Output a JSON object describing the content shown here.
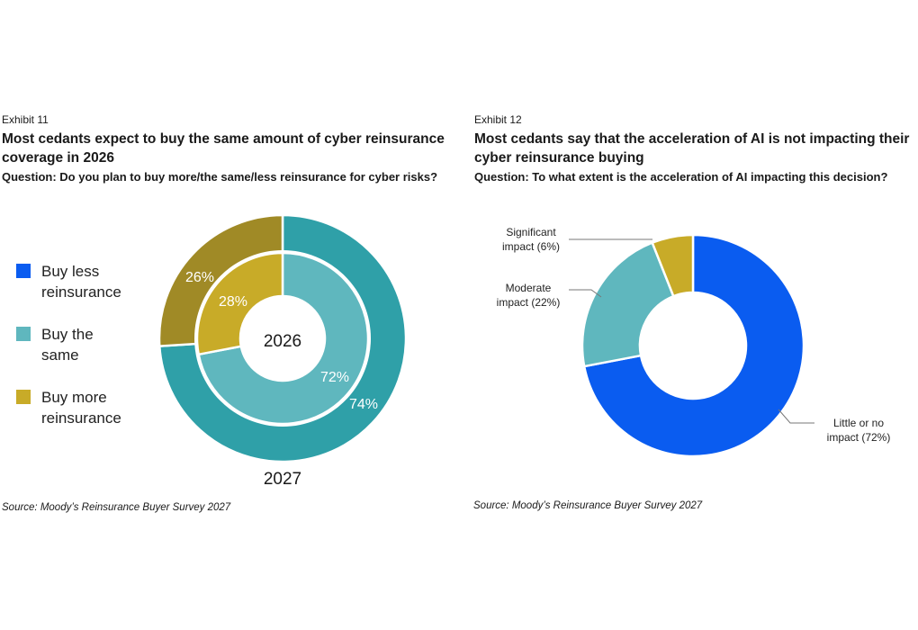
{
  "colors": {
    "buy_less": "#0a5cf0",
    "buy_same_outer": "#2fa0a8",
    "buy_same_inner": "#5fb7be",
    "buy_more_outer": "#a08a26",
    "buy_more_inner": "#c8ab28",
    "little_impact": "#0a5cf0",
    "moderate_impact": "#5fb7be",
    "significant_impact": "#c8ab28"
  },
  "exhibit11": {
    "label": "Exhibit 11",
    "title": "Most cedants expect to buy the same amount of cyber reinsurance coverage in 2026",
    "question": "Question: Do you plan to buy more/the same/less reinsurance for cyber risks?",
    "source": "Source: Moody’s Reinsurance Buyer Survey 2027",
    "legend": [
      {
        "line1": "Buy less",
        "line2": "reinsurance"
      },
      {
        "line1": "Buy the",
        "line2": "same"
      },
      {
        "line1": "Buy more",
        "line2": "reinsurance"
      }
    ]
  },
  "exhibit12": {
    "label": "Exhibit 12",
    "title": "Most cedants say that the acceleration of AI is not impacting their cyber reinsurance buying",
    "question": "Question: To what extent is the acceleration of AI impacting this decision?",
    "source": "Source: Moody’s Reinsurance Buyer Survey 2027",
    "callouts": [
      {
        "line1": "Significant",
        "line2": "impact (6%)"
      },
      {
        "line1": "Moderate",
        "line2": "impact (22%)"
      },
      {
        "line1": "Little or no",
        "line2": "impact (72%)"
      }
    ]
  },
  "chart_data": [
    {
      "type": "pie",
      "variant": "nested-donut",
      "title": "Most cedants expect to buy the same amount of cyber reinsurance coverage in 2026",
      "categories": [
        "Buy less reinsurance",
        "Buy the same",
        "Buy more reinsurance"
      ],
      "series": [
        {
          "name": "2026",
          "ring": "inner",
          "values": [
            0,
            72,
            28
          ],
          "labels": [
            "",
            "72%",
            "28%"
          ]
        },
        {
          "name": "2027",
          "ring": "outer",
          "values": [
            0,
            74,
            26
          ],
          "labels": [
            "",
            "74%",
            "26%"
          ]
        }
      ],
      "legend_position": "left"
    },
    {
      "type": "pie",
      "variant": "donut",
      "title": "Most cedants say that the acceleration of AI is not impacting their cyber reinsurance buying",
      "categories": [
        "Little or no impact",
        "Moderate impact",
        "Significant impact"
      ],
      "values": [
        72,
        22,
        6
      ]
    }
  ]
}
